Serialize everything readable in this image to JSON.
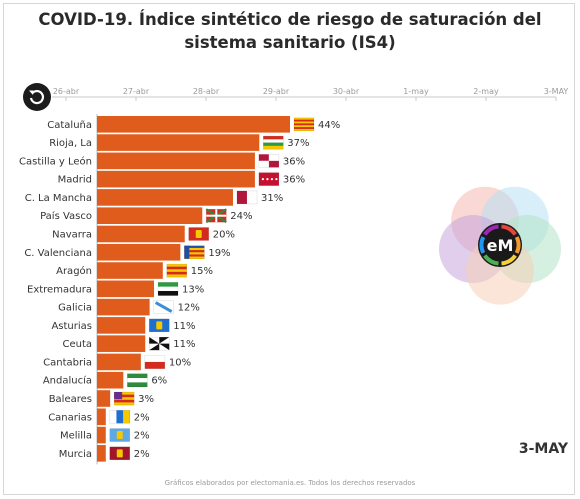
{
  "title": "COVID-19. Índice sintético de riesgo de saturación del sistema sanitario (IS4)",
  "date_label": "3-MAY",
  "credit": "Gráficos elaborados por electomania.es. Todos los derechos reservados",
  "logo": {
    "text": "eM"
  },
  "controls": {
    "replay_icon": "replay-icon"
  },
  "colors": {
    "bar": "#e05c1c",
    "timeline": "#c8c8c8",
    "text": "#333333",
    "logo_circles": [
      "#f5b8b0",
      "#b8e0f3",
      "#c6a6dc",
      "#b3e3c6",
      "#f5cfb8"
    ]
  },
  "chart_data": {
    "type": "bar",
    "orientation": "horizontal",
    "timeline_ticks": [
      "26-abr",
      "27-abr",
      "28-abr",
      "29-abr",
      "30-abr",
      "1-may",
      "2-may",
      "3-MAY"
    ],
    "xlim": [
      0,
      44
    ],
    "categories": [
      "Cataluña",
      "Rioja, La",
      "Castilla y León",
      "Madrid",
      "C. La Mancha",
      "País Vasco",
      "Navarra",
      "C. Valenciana",
      "Aragón",
      "Extremadura",
      "Galicia",
      "Asturias",
      "Ceuta",
      "Cantabria",
      "Andalucía",
      "Baleares",
      "Canarias",
      "Melilla",
      "Murcia"
    ],
    "values": [
      44,
      37,
      36,
      36,
      31,
      24,
      20,
      19,
      15,
      13,
      12,
      11,
      11,
      10,
      6,
      3,
      2,
      2,
      2
    ],
    "value_labels": [
      "44%",
      "37%",
      "36%",
      "36%",
      "31%",
      "24%",
      "20%",
      "19%",
      "15%",
      "13%",
      "12%",
      "11%",
      "11%",
      "10%",
      "6%",
      "3%",
      "2%",
      "2%",
      "2%"
    ],
    "flag_icons": [
      "flag-cataluna-icon",
      "flag-rioja-icon",
      "flag-castilla-leon-icon",
      "flag-madrid-icon",
      "flag-castilla-la-mancha-icon",
      "flag-pais-vasco-icon",
      "flag-navarra-icon",
      "flag-valenciana-icon",
      "flag-aragon-icon",
      "flag-extremadura-icon",
      "flag-galicia-icon",
      "flag-asturias-icon",
      "flag-ceuta-icon",
      "flag-cantabria-icon",
      "flag-andalucia-icon",
      "flag-baleares-icon",
      "flag-canarias-icon",
      "flag-melilla-icon",
      "flag-murcia-icon"
    ]
  }
}
